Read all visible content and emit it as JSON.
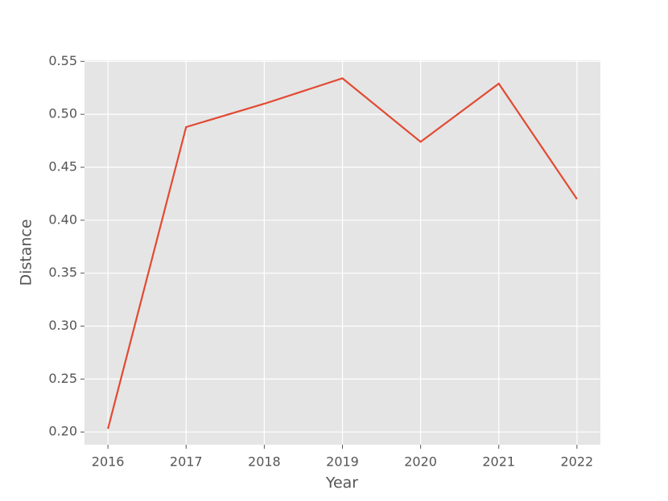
{
  "chart_data": {
    "type": "line",
    "x_label": "Year",
    "y_label": "Distance",
    "x": [
      2016,
      2017,
      2018,
      2019,
      2020,
      2021,
      2022
    ],
    "series": [
      {
        "name": "Distance",
        "color": "#e24a33",
        "values": [
          0.203,
          0.488,
          0.51,
          0.534,
          0.474,
          0.529,
          0.42
        ]
      }
    ],
    "xlim": [
      2015.7,
      2022.3
    ],
    "ylim": [
      0.188,
      0.551
    ],
    "xticks": [
      2016,
      2017,
      2018,
      2019,
      2020,
      2021,
      2022
    ],
    "yticks": [
      {
        "value": 0.2,
        "label": "0.20"
      },
      {
        "value": 0.25,
        "label": "0.25"
      },
      {
        "value": 0.3,
        "label": "0.30"
      },
      {
        "value": 0.35,
        "label": "0.35"
      },
      {
        "value": 0.4,
        "label": "0.40"
      },
      {
        "value": 0.45,
        "label": "0.45"
      },
      {
        "value": 0.5,
        "label": "0.50"
      },
      {
        "value": 0.55,
        "label": "0.55"
      }
    ],
    "grid": true,
    "background": "#e5e5e5",
    "grid_color": "#ffffff"
  }
}
